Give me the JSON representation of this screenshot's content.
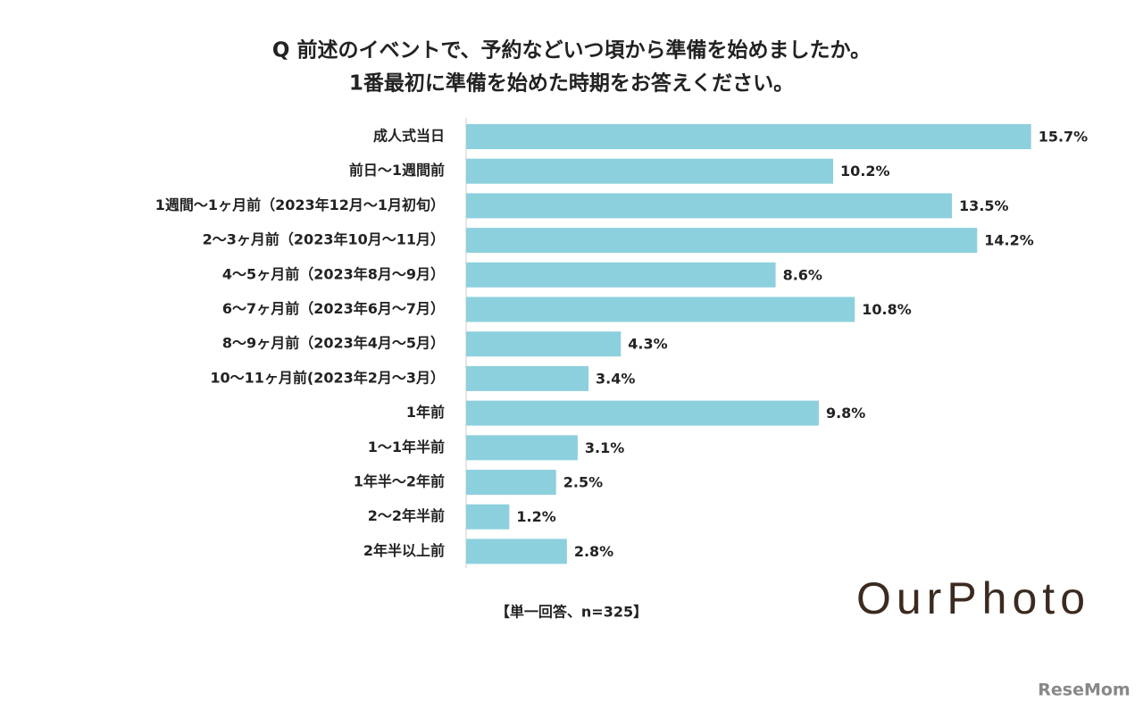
{
  "chart_data": {
    "type": "bar",
    "orientation": "horizontal",
    "title": [
      "Q 前述のイベントで、予約などいつ頃から準備を始めましたか。",
      "1番最初に準備を始めた時期をお答えください。"
    ],
    "categories": [
      "成人式当日",
      "前日～1週間前",
      "1週間～1ヶ月前（2023年12月～1月初旬）",
      "2～3ヶ月前（2023年10月～11月）",
      "4～5ヶ月前（2023年8月～9月）",
      "6～7ヶ月前（2023年6月～7月）",
      "8～9ヶ月前（2023年4月～5月）",
      "10～11ヶ月前(2023年2月～3月）",
      "1年前",
      "1～1年半前",
      "1年半～2年前",
      "2～2年半前",
      "2年半以上前"
    ],
    "values": [
      15.7,
      10.2,
      13.5,
      14.2,
      8.6,
      10.8,
      4.3,
      3.4,
      9.8,
      3.1,
      2.5,
      1.2,
      2.8
    ],
    "value_labels": [
      "15.7%",
      "10.2%",
      "13.5%",
      "14.2%",
      "8.6%",
      "10.8%",
      "4.3%",
      "3.4%",
      "9.8%",
      "3.1%",
      "2.5%",
      "1.2%",
      "2.8%"
    ],
    "color": "#8dd0dd",
    "note": "【単一回答、n=325】"
  },
  "logo": "OurPhoto",
  "watermark": "ReseMom"
}
